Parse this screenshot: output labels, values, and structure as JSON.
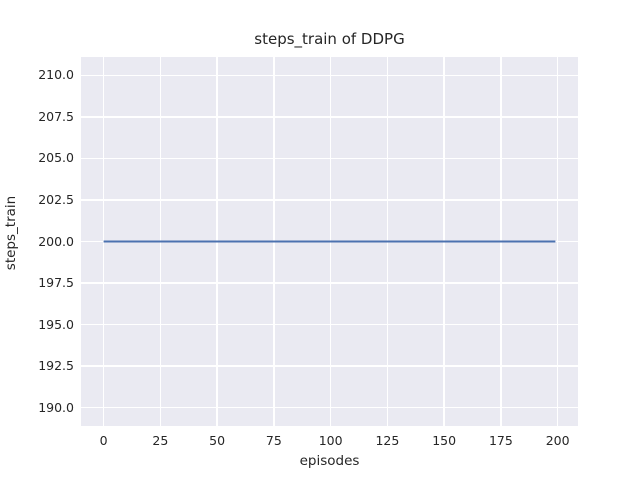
{
  "chart": {
    "title": "steps_train of DDPG",
    "xlabel": "episodes",
    "ylabel": "steps_train"
  },
  "chart_data": {
    "type": "line",
    "title": "steps_train of DDPG",
    "xlabel": "episodes",
    "ylabel": "steps_train",
    "xlim": [
      -9.95,
      208.95
    ],
    "ylim": [
      188.9,
      211.1
    ],
    "xticks": [
      0,
      25,
      50,
      75,
      100,
      125,
      150,
      175,
      200
    ],
    "xtick_labels": [
      "0",
      "25",
      "50",
      "75",
      "100",
      "125",
      "150",
      "175",
      "200"
    ],
    "yticks": [
      190.0,
      192.5,
      195.0,
      197.5,
      200.0,
      202.5,
      205.0,
      207.5,
      210.0
    ],
    "ytick_labels": [
      "190.0",
      "192.5",
      "195.0",
      "197.5",
      "200.0",
      "202.5",
      "205.0",
      "207.5",
      "210.0"
    ],
    "grid": true,
    "legend": false,
    "plot_background": "#eaeaf2",
    "gridline_color": "#ffffff",
    "series": [
      {
        "name": "steps_train",
        "color": "#4C72B0",
        "constant_value": 200,
        "x_start": 0,
        "x_end": 199,
        "points": [
          [
            0,
            200
          ],
          [
            199,
            200
          ]
        ]
      }
    ]
  }
}
